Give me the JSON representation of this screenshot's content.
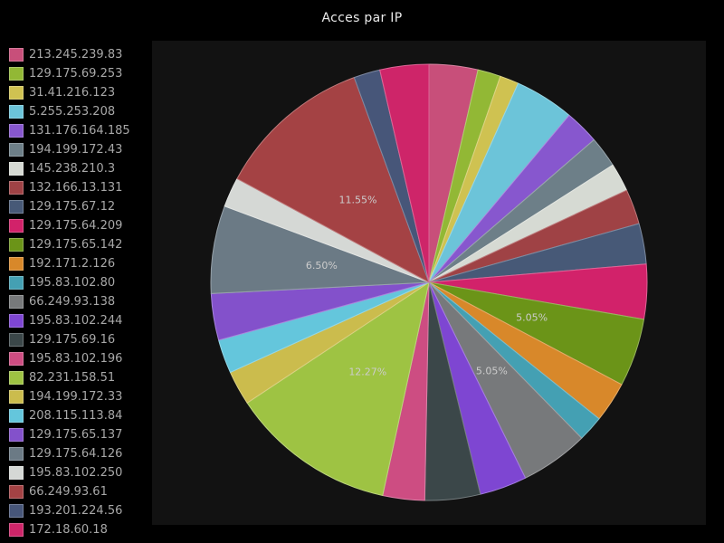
{
  "title": "Acces par IP",
  "colors": {
    "figure_background": "#000000",
    "axes_background": "#121212",
    "title_text": "#eaeaea",
    "legend_text": "#a8a8a8",
    "percent_label_text": "#cccccc"
  },
  "chart_data": {
    "type": "pie",
    "title": "Acces par IP",
    "legend_position": "left",
    "start_angle_deg": 90,
    "direction": "clockwise",
    "percent_label_rule": "percentage shown only for slices greater than 5%",
    "shown_percent_labels": [
      "5.05%",
      "5.05%",
      "12.27%",
      "6.50%",
      "11.55%"
    ],
    "slices": [
      {
        "label": "213.245.239.83",
        "percent": 3.61,
        "color": "#c84f7a"
      },
      {
        "label": "129.175.69.253",
        "percent": 1.7,
        "color": "#92b835"
      },
      {
        "label": "31.41.216.123",
        "percent": 1.4,
        "color": "#cfc251"
      },
      {
        "label": "5.255.253.208",
        "percent": 4.4,
        "color": "#6cc4d9"
      },
      {
        "label": "131.176.164.185",
        "percent": 2.55,
        "color": "#8757ce"
      },
      {
        "label": "194.199.172.43",
        "percent": 2.3,
        "color": "#6d7f88"
      },
      {
        "label": "145.238.210.3",
        "percent": 2.1,
        "color": "#d6dad3"
      },
      {
        "label": "132.166.13.131",
        "percent": 2.6,
        "color": "#9f4245"
      },
      {
        "label": "129.175.67.12",
        "percent": 3.0,
        "color": "#475977"
      },
      {
        "label": "129.175.64.209",
        "percent": 4.05,
        "color": "#d2226a"
      },
      {
        "label": "129.175.65.142",
        "percent": 5.05,
        "color": "#6b9418"
      },
      {
        "label": "192.171.2.126",
        "percent": 3.0,
        "color": "#d8882a"
      },
      {
        "label": "195.83.102.80",
        "percent": 1.9,
        "color": "#44a0b3"
      },
      {
        "label": "66.249.93.138",
        "percent": 5.05,
        "color": "#77797b"
      },
      {
        "label": "195.83.102.244",
        "percent": 3.5,
        "color": "#7e46d2"
      },
      {
        "label": "129.175.69.16",
        "percent": 4.1,
        "color": "#3b4749"
      },
      {
        "label": "195.83.102.196",
        "percent": 3.1,
        "color": "#cd4d82"
      },
      {
        "label": "82.231.158.51",
        "percent": 12.27,
        "color": "#9ec343"
      },
      {
        "label": "194.199.172.33",
        "percent": 2.55,
        "color": "#cbbc4d"
      },
      {
        "label": "208.115.113.84",
        "percent": 2.5,
        "color": "#64c6dc"
      },
      {
        "label": "129.175.65.137",
        "percent": 3.45,
        "color": "#8351cb"
      },
      {
        "label": "129.175.64.126",
        "percent": 6.5,
        "color": "#6b7a85"
      },
      {
        "label": "195.83.102.250",
        "percent": 2.2,
        "color": "#d5d8d5"
      },
      {
        "label": "66.249.93.61",
        "percent": 11.55,
        "color": "#a44244"
      },
      {
        "label": "193.201.224.56",
        "percent": 1.95,
        "color": "#475679"
      },
      {
        "label": "172.18.60.18",
        "percent": 3.62,
        "color": "#ce2569"
      }
    ]
  }
}
